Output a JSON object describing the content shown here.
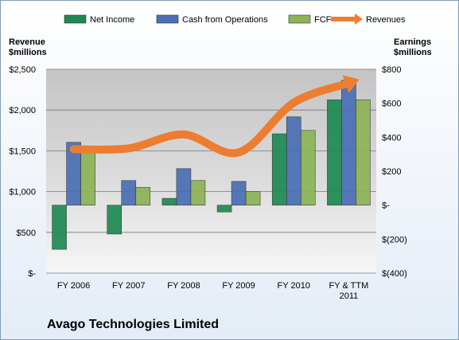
{
  "chart_data": {
    "type": "bar",
    "categories": [
      "FY 2006",
      "FY 2007",
      "FY 2008",
      "FY 2009",
      "FY 2010",
      "FY & TTM 2011"
    ],
    "series": [
      {
        "name": "Net Income",
        "axis": "right",
        "values": [
          -260,
          -170,
          40,
          -40,
          420,
          620
        ],
        "color": "#1e8a52"
      },
      {
        "name": "Cash from Operations",
        "axis": "right",
        "values": [
          370,
          145,
          215,
          140,
          520,
          735
        ],
        "color": "#4a6fb5"
      },
      {
        "name": "FCF",
        "axis": "right",
        "values": [
          335,
          105,
          145,
          80,
          440,
          620
        ],
        "color": "#8db356"
      },
      {
        "name": "Revenues",
        "axis": "left",
        "type": "line",
        "values": [
          1520,
          1530,
          1700,
          1480,
          2090,
          2330
        ],
        "color": "#ed7d31"
      }
    ],
    "left_axis": {
      "title": [
        "Revenue",
        "$millions"
      ],
      "ylim": [
        0,
        2500
      ],
      "ticks": [
        0,
        500,
        1000,
        1500,
        2000,
        2500
      ],
      "tick_labels": [
        "$-",
        "$500",
        "$1,000",
        "$1,500",
        "$2,000",
        "$2,500"
      ]
    },
    "right_axis": {
      "title": [
        "Earnings",
        "$millions"
      ],
      "ylim": [
        -400,
        800
      ],
      "ticks": [
        -400,
        -200,
        0,
        200,
        400,
        600,
        800
      ],
      "tick_labels": [
        "$(400)",
        "$(200)",
        "$-",
        "$200",
        "$400",
        "$600",
        "$800"
      ]
    },
    "x_tick_labels": [
      [
        "FY 2006"
      ],
      [
        "FY 2007"
      ],
      [
        "FY 2008"
      ],
      [
        "FY 2009"
      ],
      [
        "FY 2010"
      ],
      [
        "FY & TTM",
        "2011"
      ]
    ],
    "grid": true,
    "legend_position": "top"
  },
  "company_name": "Avago Technologies Limited"
}
